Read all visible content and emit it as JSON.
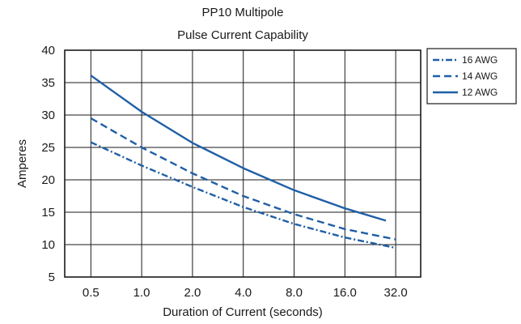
{
  "chart_data": {
    "type": "line",
    "title": "PP10 Multipole",
    "subtitle": "Pulse Current Capability",
    "xlabel": "Duration of Current (seconds)",
    "ylabel": "Amperes",
    "x_scale": "log2",
    "x_ticks": [
      "0.5",
      "1.0",
      "2.0",
      "4.0",
      "8.0",
      "16.0",
      "32.0"
    ],
    "x_tick_values": [
      0.5,
      1,
      2,
      4,
      8,
      16,
      32
    ],
    "xlim": [
      0.35,
      45
    ],
    "ylim": [
      5,
      40
    ],
    "y_ticks": [
      5,
      10,
      15,
      20,
      25,
      30,
      35,
      40
    ],
    "grid": true,
    "legend_position": "right",
    "series": [
      {
        "name": "16 AWG",
        "style": "dash-dot",
        "color": "#1f5fa6",
        "x": [
          0.5,
          1,
          2,
          4,
          8,
          16,
          32
        ],
        "y": [
          25.8,
          22.2,
          18.9,
          15.8,
          13.2,
          11.1,
          9.5
        ]
      },
      {
        "name": "14 AWG",
        "style": "dashed",
        "color": "#1f5fa6",
        "x": [
          0.5,
          1,
          2,
          4,
          8,
          16,
          32
        ],
        "y": [
          29.5,
          25.0,
          21.0,
          17.5,
          14.7,
          12.4,
          10.8
        ]
      },
      {
        "name": "12 AWG",
        "style": "solid",
        "color": "#1f5fa6",
        "x": [
          0.5,
          1,
          2,
          4,
          8,
          16,
          28
        ],
        "y": [
          36.1,
          30.5,
          25.7,
          21.8,
          18.4,
          15.6,
          13.7
        ]
      }
    ]
  }
}
